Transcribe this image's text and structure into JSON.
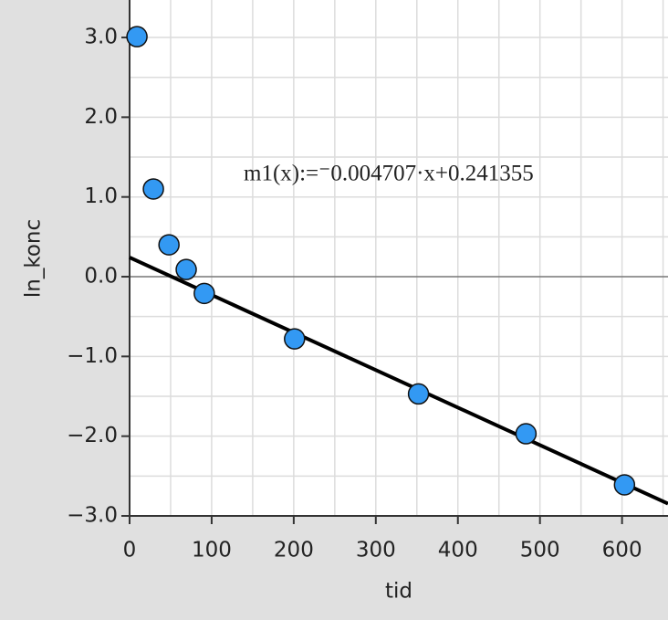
{
  "chart_data": {
    "type": "scatter",
    "x_label": "tid",
    "y_label": "ln_konc",
    "x": [
      9,
      29,
      48,
      69,
      91,
      201,
      352,
      483,
      603
    ],
    "series": [
      {
        "color": "#3399f3",
        "values": [
          3.01,
          1.1,
          0.4,
          0.09,
          -0.21,
          -0.78,
          -1.47,
          -1.97,
          -2.61
        ]
      }
    ],
    "regression": {
      "label": "m1(x):=⁻0.004707·x+0.241355",
      "slope": -0.004707,
      "intercept": 0.241355,
      "color": "#000000"
    },
    "xlim": [
      0,
      656
    ],
    "ylim": [
      -3.0,
      3.47
    ],
    "xticks": [
      0,
      100,
      200,
      300,
      400,
      500,
      600
    ],
    "yticks": [
      {
        "value": -3,
        "label": "−3.0"
      },
      {
        "value": -2,
        "label": "−2.0"
      },
      {
        "value": -1,
        "label": "−1.0"
      },
      {
        "value": 0,
        "label": "0.0"
      },
      {
        "value": 1,
        "label": "1.0"
      },
      {
        "value": 2,
        "label": "2.0"
      },
      {
        "value": 3,
        "label": "3.0"
      }
    ],
    "grid": true
  }
}
